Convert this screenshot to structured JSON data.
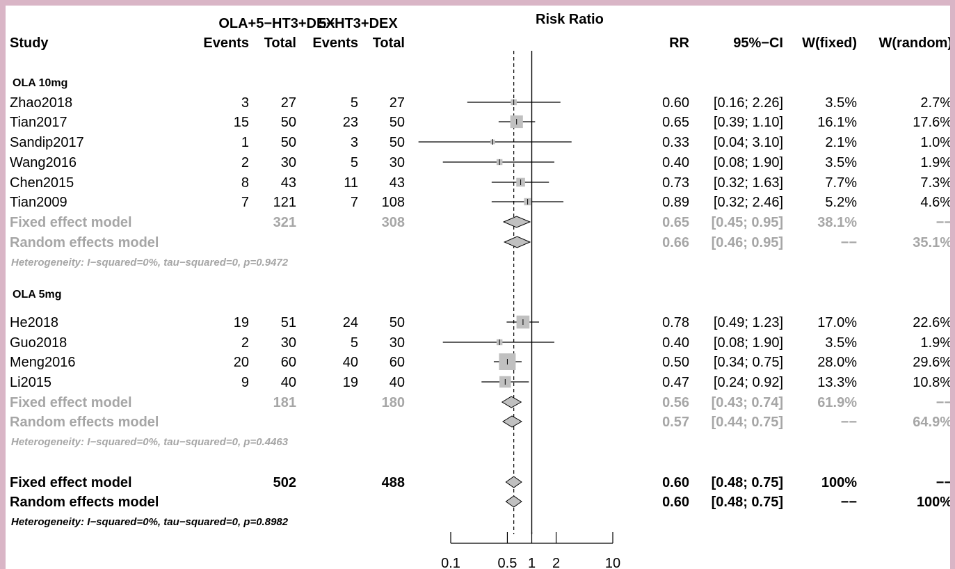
{
  "chart_data": {
    "type": "forest",
    "scale": "log",
    "xlim": [
      0.1,
      10
    ],
    "xticks": [
      0.1,
      0.5,
      1,
      2,
      10
    ],
    "xtick_labels": [
      "0.1",
      "0.5",
      "1",
      "2",
      "10"
    ],
    "reference_line": 1,
    "pooled_line": 0.6,
    "header": {
      "plot_title": "Risk Ratio",
      "study": "Study",
      "group1": "OLA+5−HT3+DEX",
      "group2": "5−HT3+DEX",
      "events": "Events",
      "total": "Total",
      "rr": "RR",
      "ci": "95%−CI",
      "w_fixed": "W(fixed)",
      "w_random": "W(random)"
    },
    "subgroups": [
      {
        "label": "OLA  10mg",
        "studies": [
          {
            "study": "Zhao2018",
            "e1": "3",
            "n1": "27",
            "e2": "5",
            "n2": "27",
            "rr": 0.6,
            "lo": 0.16,
            "hi": 2.26,
            "rr_text": "0.60",
            "ci_text": "[0.16; 2.26]",
            "wf": "3.5%",
            "wr": "2.7%"
          },
          {
            "study": "Tian2017",
            "e1": "15",
            "n1": "50",
            "e2": "23",
            "n2": "50",
            "rr": 0.65,
            "lo": 0.39,
            "hi": 1.1,
            "rr_text": "0.65",
            "ci_text": "[0.39; 1.10]",
            "wf": "16.1%",
            "wr": "17.6%"
          },
          {
            "study": "Sandip2017",
            "e1": "1",
            "n1": "50",
            "e2": "3",
            "n2": "50",
            "rr": 0.33,
            "lo": 0.04,
            "hi": 3.1,
            "rr_text": "0.33",
            "ci_text": "[0.04; 3.10]",
            "wf": "2.1%",
            "wr": "1.0%"
          },
          {
            "study": "Wang2016",
            "e1": "2",
            "n1": "30",
            "e2": "5",
            "n2": "30",
            "rr": 0.4,
            "lo": 0.08,
            "hi": 1.9,
            "rr_text": "0.40",
            "ci_text": "[0.08; 1.90]",
            "wf": "3.5%",
            "wr": "1.9%"
          },
          {
            "study": "Chen2015",
            "e1": "8",
            "n1": "43",
            "e2": "11",
            "n2": "43",
            "rr": 0.73,
            "lo": 0.32,
            "hi": 1.63,
            "rr_text": "0.73",
            "ci_text": "[0.32; 1.63]",
            "wf": "7.7%",
            "wr": "7.3%"
          },
          {
            "study": "Tian2009",
            "e1": "7",
            "n1": "121",
            "e2": "7",
            "n2": "108",
            "rr": 0.89,
            "lo": 0.32,
            "hi": 2.46,
            "rr_text": "0.89",
            "ci_text": "[0.32; 2.46]",
            "wf": "5.2%",
            "wr": "4.6%"
          }
        ],
        "fixed": {
          "label": "Fixed effect model",
          "n1": "321",
          "n2": "308",
          "rr": 0.65,
          "lo": 0.45,
          "hi": 0.95,
          "rr_text": "0.65",
          "ci_text": "[0.45; 0.95]",
          "wf": "38.1%",
          "wr": "−−"
        },
        "random": {
          "label": "Random effects model",
          "rr": 0.66,
          "lo": 0.46,
          "hi": 0.95,
          "rr_text": "0.66",
          "ci_text": "[0.46; 0.95]",
          "wf": "−−",
          "wr": "35.1%"
        },
        "heterogeneity": "Heterogeneity: I−squared=0%, tau−squared=0, p=0.9472"
      },
      {
        "label": "OLA  5mg",
        "studies": [
          {
            "study": "He2018",
            "e1": "19",
            "n1": "51",
            "e2": "24",
            "n2": "50",
            "rr": 0.78,
            "lo": 0.49,
            "hi": 1.23,
            "rr_text": "0.78",
            "ci_text": "[0.49; 1.23]",
            "wf": "17.0%",
            "wr": "22.6%"
          },
          {
            "study": "Guo2018",
            "e1": "2",
            "n1": "30",
            "e2": "5",
            "n2": "30",
            "rr": 0.4,
            "lo": 0.08,
            "hi": 1.9,
            "rr_text": "0.40",
            "ci_text": "[0.08; 1.90]",
            "wf": "3.5%",
            "wr": "1.9%"
          },
          {
            "study": "Meng2016",
            "e1": "20",
            "n1": "60",
            "e2": "40",
            "n2": "60",
            "rr": 0.5,
            "lo": 0.34,
            "hi": 0.75,
            "rr_text": "0.50",
            "ci_text": "[0.34; 0.75]",
            "wf": "28.0%",
            "wr": "29.6%"
          },
          {
            "study": "Li2015",
            "e1": "9",
            "n1": "40",
            "e2": "19",
            "n2": "40",
            "rr": 0.47,
            "lo": 0.24,
            "hi": 0.92,
            "rr_text": "0.47",
            "ci_text": "[0.24; 0.92]",
            "wf": "13.3%",
            "wr": "10.8%"
          }
        ],
        "fixed": {
          "label": "Fixed effect model",
          "n1": "181",
          "n2": "180",
          "rr": 0.56,
          "lo": 0.43,
          "hi": 0.74,
          "rr_text": "0.56",
          "ci_text": "[0.43; 0.74]",
          "wf": "61.9%",
          "wr": "−−"
        },
        "random": {
          "label": "Random effects model",
          "rr": 0.57,
          "lo": 0.44,
          "hi": 0.75,
          "rr_text": "0.57",
          "ci_text": "[0.44; 0.75]",
          "wf": "−−",
          "wr": "64.9%"
        },
        "heterogeneity": "Heterogeneity: I−squared=0%, tau−squared=0, p=0.4463"
      }
    ],
    "overall": {
      "fixed": {
        "label": "Fixed effect model",
        "n1": "502",
        "n2": "488",
        "rr": 0.6,
        "lo": 0.48,
        "hi": 0.75,
        "rr_text": "0.60",
        "ci_text": "[0.48; 0.75]",
        "wf": "100%",
        "wr": "−−"
      },
      "random": {
        "label": "Random effects model",
        "rr": 0.6,
        "lo": 0.48,
        "hi": 0.75,
        "rr_text": "0.60",
        "ci_text": "[0.48; 0.75]",
        "wf": "−−",
        "wr": "100%"
      },
      "heterogeneity": "Heterogeneity: I−squared=0%, tau−squared=0, p=0.8982"
    },
    "colors": {
      "text": "#000000",
      "subgroup_summary": "#a6a6a6",
      "box": "#c0c0c0",
      "diamond": "#c0c0c0",
      "frame": "#d9b5c6"
    }
  }
}
